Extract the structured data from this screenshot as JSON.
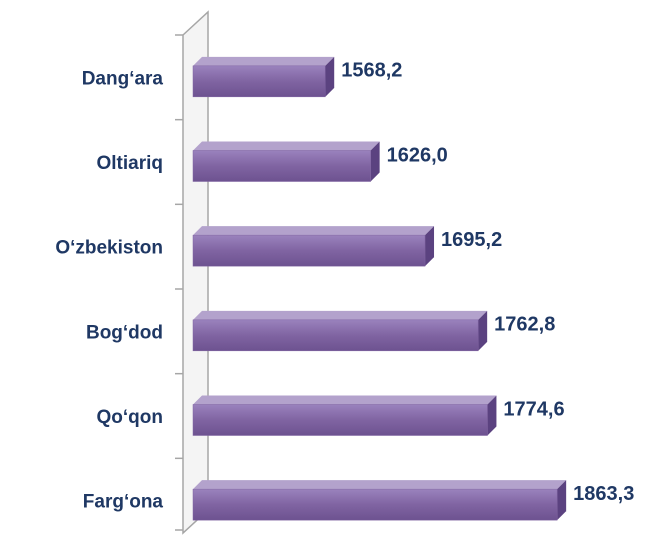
{
  "chart_data": {
    "type": "bar",
    "orientation": "horizontal",
    "categories": [
      "Dang‘ara",
      "Oltiariq",
      "O‘zbekiston",
      "Bog‘dod",
      "Qo‘qon",
      "Farg‘ona"
    ],
    "values": [
      1568.2,
      1626.0,
      1695.2,
      1762.8,
      1774.6,
      1863.3
    ],
    "value_labels": [
      "1568,2",
      "1626,0",
      "1695,2",
      "1762,8",
      "1774,6",
      "1863,3"
    ],
    "color": "#8064a2",
    "xlim": [
      1400,
      1900
    ]
  }
}
